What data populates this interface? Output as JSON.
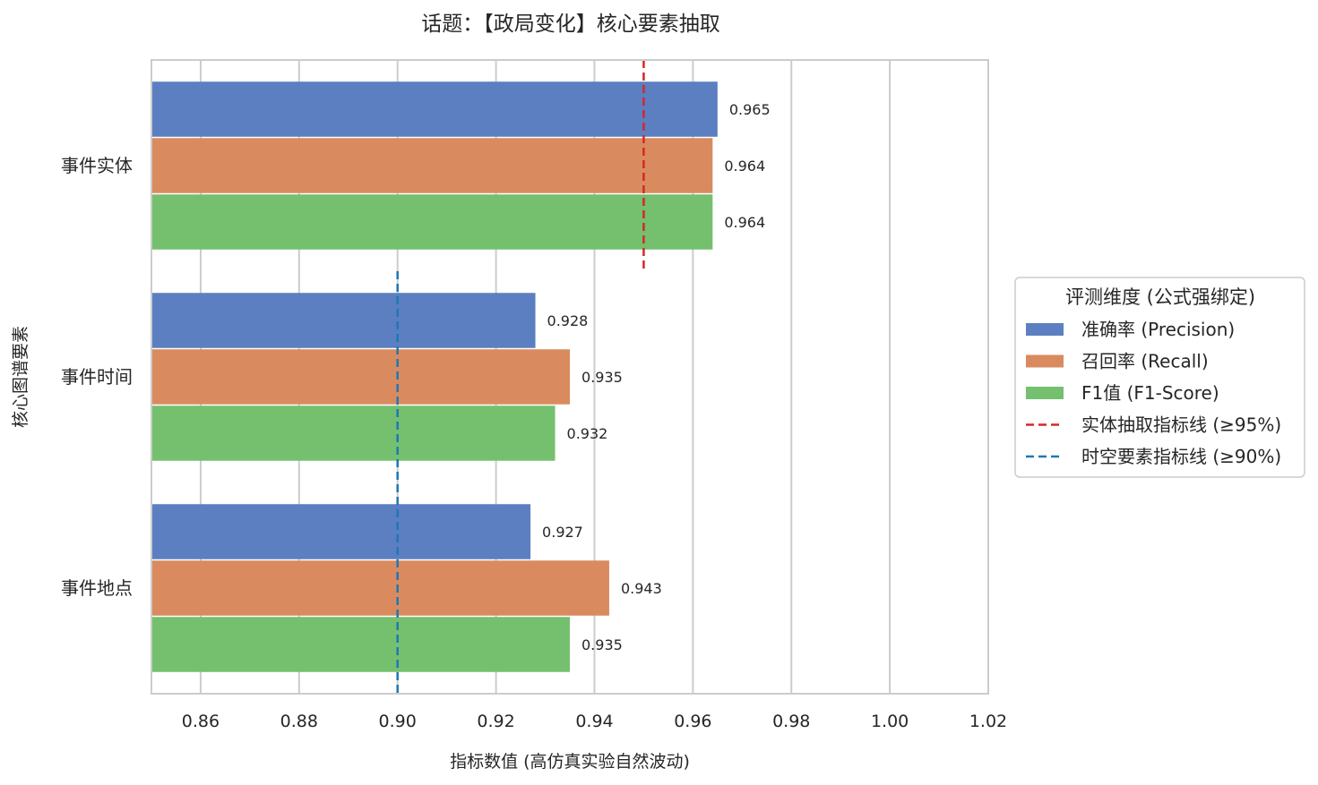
{
  "chart_data": {
    "type": "bar",
    "orientation": "horizontal",
    "title": "话题：【政局变化】核心要素抽取",
    "xlabel": "指标数值 (高仿真实验自然波动)",
    "ylabel": "核心图谱要素",
    "xlim": [
      0.85,
      1.02
    ],
    "xticks": [
      0.86,
      0.88,
      0.9,
      0.92,
      0.94,
      0.96,
      0.98,
      1.0,
      1.02
    ],
    "xtick_labels": [
      "0.86",
      "0.88",
      "0.90",
      "0.92",
      "0.94",
      "0.96",
      "0.98",
      "1.00",
      "1.02"
    ],
    "categories": [
      "事件实体",
      "事件时间",
      "事件地点"
    ],
    "series": [
      {
        "name": "准确率 (Precision)",
        "color": "#5b7fc1",
        "values": [
          0.965,
          0.928,
          0.927
        ],
        "labels": [
          "0.965",
          "0.928",
          "0.927"
        ]
      },
      {
        "name": "召回率 (Recall)",
        "color": "#d98b5f",
        "values": [
          0.964,
          0.935,
          0.943
        ],
        "labels": [
          "0.964",
          "0.935",
          "0.943"
        ]
      },
      {
        "name": "F1值 (F1-Score)",
        "color": "#74c06e",
        "values": [
          0.964,
          0.932,
          0.935
        ],
        "labels": [
          "0.964",
          "0.932",
          "0.935"
        ]
      }
    ],
    "reference_lines": [
      {
        "name": "实体抽取指标线 (≥95%)",
        "value": 0.95,
        "color": "#d62728",
        "style": "dashed",
        "applies_to": [
          "事件实体"
        ]
      },
      {
        "name": "时空要素指标线 (≥90%)",
        "value": 0.9,
        "color": "#1f77b4",
        "style": "dashed",
        "applies_to": [
          "事件时间",
          "事件地点"
        ]
      }
    ],
    "legend": {
      "title": "评测维度 (公式强绑定)",
      "placement": "right"
    },
    "grid": {
      "x": true,
      "y": false
    }
  }
}
